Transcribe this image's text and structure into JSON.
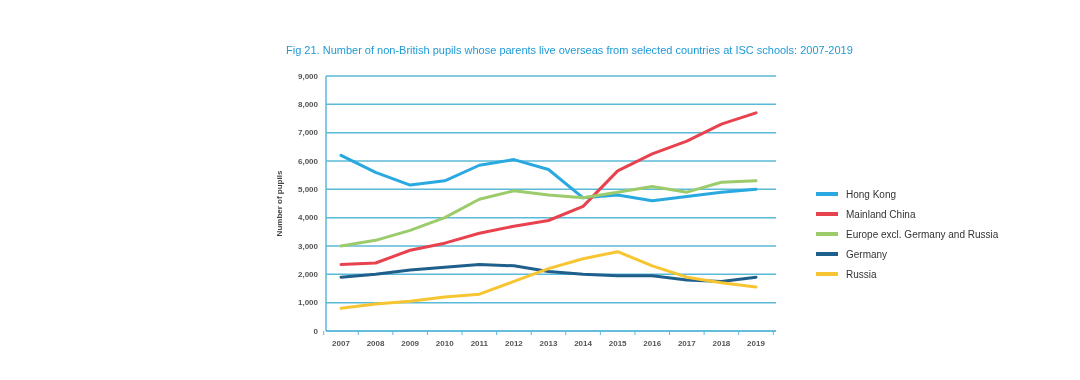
{
  "chart_data": {
    "type": "line",
    "title": "Fig 21. Number of non-British pupils whose parents live overseas from selected countries at ISC schools: 2007-2019",
    "ylabel": "Number of pupils",
    "categories": [
      "2007",
      "2008",
      "2009",
      "2010",
      "2011",
      "2012",
      "2013",
      "2014",
      "2015",
      "2016",
      "2017",
      "2018",
      "2019"
    ],
    "ylim": [
      0,
      9000
    ],
    "yticks": [
      {
        "value": 0,
        "label": "0"
      },
      {
        "value": 1000,
        "label": "1,000"
      },
      {
        "value": 2000,
        "label": "2,000"
      },
      {
        "value": 3000,
        "label": "3,000"
      },
      {
        "value": 4000,
        "label": "4,000"
      },
      {
        "value": 5000,
        "label": "5,000"
      },
      {
        "value": 6000,
        "label": "6,000"
      },
      {
        "value": 7000,
        "label": "7,000"
      },
      {
        "value": 8000,
        "label": "8,000"
      },
      {
        "value": 9000,
        "label": "9,000"
      }
    ],
    "grid": "y",
    "legend": "right",
    "marker": "none",
    "line_style": "solid",
    "series": [
      {
        "name": "Hong Kong",
        "color": "#29a9e0",
        "values": [
          6200,
          5600,
          5150,
          5300,
          5850,
          6050,
          5700,
          4700,
          4800,
          4600,
          4750,
          4900,
          5000
        ]
      },
      {
        "name": "Mainland China",
        "color": "#e8424f",
        "values": [
          2350,
          2400,
          2850,
          3100,
          3450,
          3700,
          3900,
          4400,
          5650,
          6250,
          6700,
          7300,
          7700
        ]
      },
      {
        "name": "Europe excl. Germany and Russia",
        "color": "#9ccb6b",
        "values": [
          3000,
          3200,
          3550,
          4000,
          4650,
          4950,
          4800,
          4700,
          4900,
          5100,
          4900,
          5250,
          5300
        ]
      },
      {
        "name": "Germany",
        "color": "#1f5f8b",
        "values": [
          1900,
          2000,
          2150,
          2250,
          2350,
          2300,
          2100,
          2000,
          1950,
          1950,
          1800,
          1750,
          1900
        ]
      },
      {
        "name": "Russia",
        "color": "#f7c531",
        "values": [
          800,
          950,
          1050,
          1200,
          1300,
          1750,
          2200,
          2550,
          2800,
          2300,
          1900,
          1700,
          1550
        ]
      }
    ]
  }
}
